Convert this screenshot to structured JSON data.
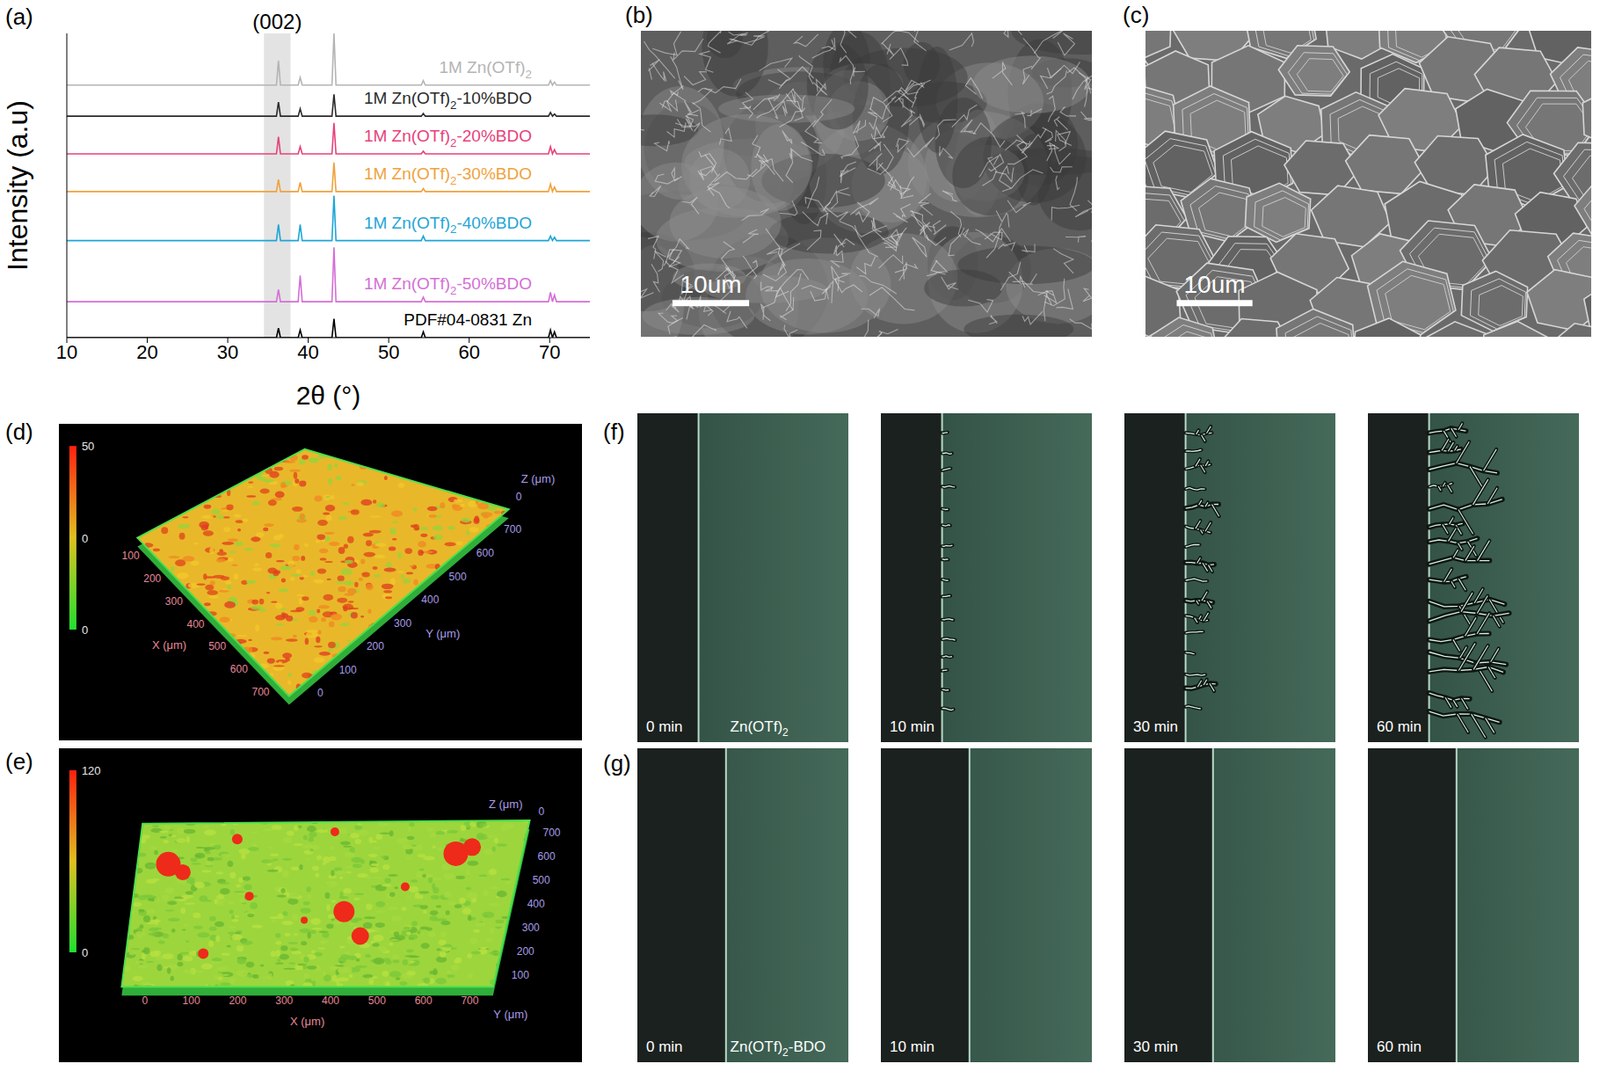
{
  "chart_data": {
    "type": "line",
    "x_label": "2θ (°)",
    "y_label": "Intensity (a.u)",
    "annotation": "(002)",
    "annotation_range": [
      34.5,
      37.8
    ],
    "x": [
      10,
      36.05,
      36.3,
      36.55,
      38.75,
      39.0,
      39.25,
      42.95,
      43.2,
      43.45,
      54.05,
      54.3,
      54.55,
      69.85,
      70.1,
      70.35,
      70.6,
      70.85,
      75
    ],
    "xlim": [
      10,
      75
    ],
    "xticks": [
      10,
      20,
      30,
      40,
      50,
      60,
      70
    ],
    "ylim": [
      0,
      100
    ],
    "tick_labels": "x",
    "series": [
      {
        "name": "1M Zn(OTf)2",
        "color": "#b4b4b4",
        "values": [
          83,
          83,
          91,
          83,
          83,
          85.5,
          83,
          83,
          100,
          83,
          83,
          84.5,
          83,
          83,
          84.5,
          83,
          84,
          83,
          83
        ]
      },
      {
        "name": "1M Zn(OTf)2-10%BDO",
        "color": "#2b2b2b",
        "values": [
          72.8,
          72.8,
          77.4,
          72.8,
          72.8,
          75.2,
          72.8,
          72.8,
          80,
          72.8,
          72.8,
          73.7,
          72.8,
          72.8,
          74,
          72.8,
          73.5,
          72.8,
          72.8
        ]
      },
      {
        "name": "1M Zn(OTf)2-20%BDO",
        "color": "#e8417c",
        "values": [
          60.4,
          60.4,
          66,
          60.4,
          60.4,
          62.8,
          60.4,
          60.4,
          70.6,
          60.4,
          60.4,
          61.3,
          60.4,
          60.4,
          62.8,
          60.4,
          61.8,
          60.4,
          60.4
        ]
      },
      {
        "name": "1M Zn(OTf)2-30%BDO",
        "color": "#f0a23c",
        "values": [
          48,
          48,
          52,
          48,
          48,
          51,
          48,
          48,
          57.6,
          48,
          48,
          49,
          48,
          48,
          50.5,
          48,
          49.5,
          48,
          48
        ]
      },
      {
        "name": "1M Zn(OTf)2-40%BDO",
        "color": "#1fa6d6",
        "values": [
          31.9,
          31.9,
          37.2,
          31.9,
          31.9,
          37.2,
          31.9,
          31.9,
          46.7,
          31.9,
          31.9,
          33.4,
          31.9,
          31.9,
          33.4,
          31.9,
          33,
          31.9,
          31.9
        ]
      },
      {
        "name": "1M Zn(OTf)2-50%BDO",
        "color": "#d46fd6",
        "values": [
          11.8,
          11.8,
          15.8,
          11.8,
          11.8,
          20.4,
          11.8,
          11.8,
          29.7,
          11.8,
          11.8,
          13.3,
          11.8,
          11.8,
          14.9,
          11.8,
          14,
          11.8,
          11.8
        ]
      },
      {
        "name": "PDF#04-0831 Zn",
        "color": "#000000",
        "values": [
          0,
          0,
          3.1,
          0,
          0,
          2.5,
          0,
          0,
          6.2,
          0,
          0,
          1.9,
          0,
          0,
          2.5,
          0,
          1.9,
          0,
          0
        ]
      }
    ]
  },
  "panels": {
    "a": {
      "label": "(a)"
    },
    "b": {
      "label": "(b)",
      "scale_bar": "10um"
    },
    "c": {
      "label": "(c)",
      "scale_bar": "10um"
    },
    "d": {
      "label": "(d)",
      "colorbar_labels": [
        50,
        0,
        0
      ],
      "x_label": "X (μm)",
      "y_label": "Y (μm)",
      "z_label": "Z (μm)",
      "x_ticks": [
        100,
        200,
        300,
        400,
        500,
        600,
        700
      ],
      "y_ticks": [
        0,
        100,
        200,
        300,
        400,
        500,
        600,
        700
      ],
      "z_ticks": [
        0
      ]
    },
    "e": {
      "label": "(e)",
      "colorbar_labels": [
        120,
        0
      ],
      "x_label": "X (μm)",
      "y_label": "Y (μm)",
      "z_label": "Z (μm)",
      "x_ticks": [
        0,
        100,
        200,
        300,
        400,
        500,
        600,
        700
      ],
      "y_ticks": [
        100,
        200,
        300,
        400,
        500,
        600,
        700
      ],
      "z_ticks": [
        0
      ]
    },
    "f": {
      "label": "(f)",
      "electrolyte": "Zn(OTf)2",
      "frames": [
        "0 min",
        "10 min",
        "30 min",
        "60 min"
      ]
    },
    "g": {
      "label": "(g)",
      "electrolyte": "Zn(OTf)2-BDO",
      "frames": [
        "0 min",
        "10 min",
        "30 min",
        "60 min"
      ]
    }
  }
}
